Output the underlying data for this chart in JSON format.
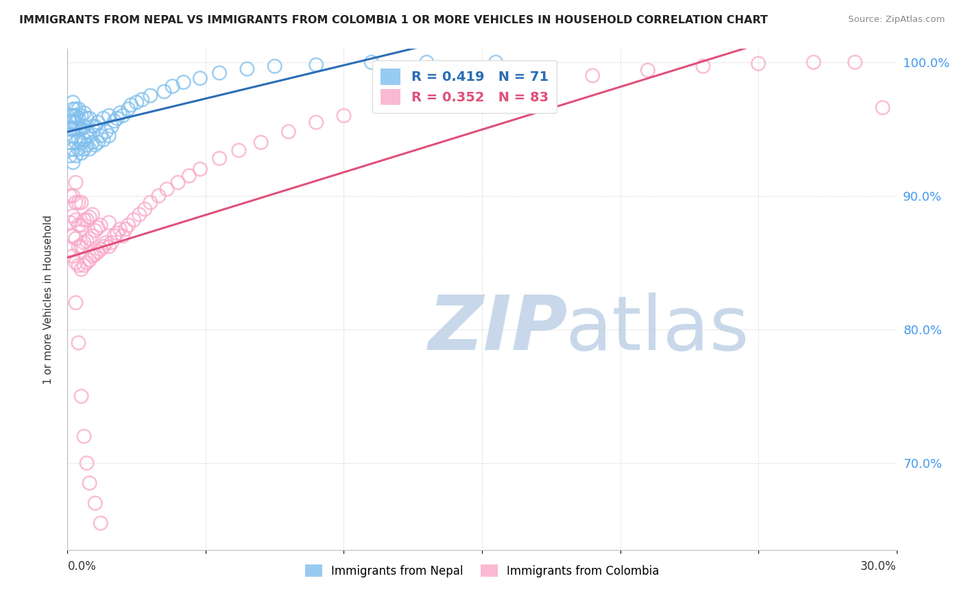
{
  "title": "IMMIGRANTS FROM NEPAL VS IMMIGRANTS FROM COLOMBIA 1 OR MORE VEHICLES IN HOUSEHOLD CORRELATION CHART",
  "source": "Source: ZipAtlas.com",
  "ylabel": "1 or more Vehicles in Household",
  "ytick_values": [
    0.7,
    0.8,
    0.9,
    1.0
  ],
  "ytick_labels": [
    "70.0%",
    "80.0%",
    "90.0%",
    "100.0%"
  ],
  "xlim": [
    0.0,
    0.3
  ],
  "ylim": [
    0.635,
    1.01
  ],
  "nepal_color": "#7fbfed",
  "colombia_color": "#f9a8c9",
  "nepal_line_color": "#2a6db5",
  "colombia_line_color": "#e0507a",
  "nepal_R": 0.419,
  "nepal_N": 71,
  "colombia_R": 0.352,
  "colombia_N": 83,
  "background_color": "#ffffff",
  "watermark_color": "#c8d8ea",
  "grid_color": "#cccccc",
  "legend_nepal_label": "Immigrants from Nepal",
  "legend_colombia_label": "Immigrants from Colombia",
  "nepal_x": [
    0.001,
    0.001,
    0.001,
    0.001,
    0.001,
    0.002,
    0.002,
    0.002,
    0.002,
    0.002,
    0.002,
    0.002,
    0.002,
    0.003,
    0.003,
    0.003,
    0.003,
    0.003,
    0.003,
    0.004,
    0.004,
    0.004,
    0.004,
    0.004,
    0.005,
    0.005,
    0.005,
    0.005,
    0.006,
    0.006,
    0.006,
    0.006,
    0.007,
    0.007,
    0.007,
    0.008,
    0.008,
    0.008,
    0.009,
    0.009,
    0.01,
    0.01,
    0.011,
    0.011,
    0.012,
    0.013,
    0.013,
    0.014,
    0.015,
    0.015,
    0.016,
    0.017,
    0.018,
    0.019,
    0.02,
    0.022,
    0.023,
    0.025,
    0.027,
    0.03,
    0.035,
    0.038,
    0.042,
    0.048,
    0.055,
    0.065,
    0.075,
    0.09,
    0.11,
    0.13,
    0.155
  ],
  "nepal_y": [
    0.93,
    0.94,
    0.95,
    0.955,
    0.96,
    0.925,
    0.935,
    0.945,
    0.95,
    0.955,
    0.96,
    0.965,
    0.97,
    0.93,
    0.94,
    0.95,
    0.955,
    0.96,
    0.965,
    0.935,
    0.942,
    0.95,
    0.958,
    0.965,
    0.932,
    0.94,
    0.95,
    0.96,
    0.935,
    0.942,
    0.952,
    0.962,
    0.938,
    0.948,
    0.958,
    0.935,
    0.945,
    0.958,
    0.94,
    0.952,
    0.938,
    0.952,
    0.94,
    0.955,
    0.945,
    0.942,
    0.958,
    0.948,
    0.945,
    0.96,
    0.952,
    0.956,
    0.958,
    0.962,
    0.96,
    0.965,
    0.968,
    0.97,
    0.972,
    0.975,
    0.978,
    0.982,
    0.985,
    0.988,
    0.992,
    0.995,
    0.997,
    0.998,
    1.0,
    1.0,
    1.0
  ],
  "colombia_x": [
    0.001,
    0.001,
    0.001,
    0.002,
    0.002,
    0.002,
    0.002,
    0.003,
    0.003,
    0.003,
    0.003,
    0.003,
    0.004,
    0.004,
    0.004,
    0.004,
    0.005,
    0.005,
    0.005,
    0.005,
    0.006,
    0.006,
    0.006,
    0.007,
    0.007,
    0.007,
    0.008,
    0.008,
    0.008,
    0.009,
    0.009,
    0.009,
    0.01,
    0.01,
    0.011,
    0.011,
    0.012,
    0.012,
    0.013,
    0.014,
    0.015,
    0.015,
    0.016,
    0.017,
    0.018,
    0.019,
    0.02,
    0.021,
    0.022,
    0.024,
    0.026,
    0.028,
    0.03,
    0.033,
    0.036,
    0.04,
    0.044,
    0.048,
    0.055,
    0.062,
    0.07,
    0.08,
    0.09,
    0.1,
    0.115,
    0.13,
    0.15,
    0.17,
    0.19,
    0.21,
    0.23,
    0.25,
    0.27,
    0.285,
    0.295,
    0.003,
    0.004,
    0.005,
    0.006,
    0.007,
    0.008,
    0.01,
    0.012
  ],
  "colombia_y": [
    0.86,
    0.88,
    0.9,
    0.855,
    0.87,
    0.885,
    0.9,
    0.85,
    0.868,
    0.882,
    0.895,
    0.91,
    0.848,
    0.862,
    0.878,
    0.895,
    0.845,
    0.862,
    0.878,
    0.895,
    0.848,
    0.865,
    0.882,
    0.85,
    0.866,
    0.882,
    0.852,
    0.868,
    0.884,
    0.855,
    0.87,
    0.886,
    0.856,
    0.874,
    0.858,
    0.876,
    0.86,
    0.878,
    0.862,
    0.865,
    0.862,
    0.88,
    0.865,
    0.87,
    0.872,
    0.875,
    0.87,
    0.875,
    0.878,
    0.882,
    0.886,
    0.89,
    0.895,
    0.9,
    0.905,
    0.91,
    0.915,
    0.92,
    0.928,
    0.934,
    0.94,
    0.948,
    0.955,
    0.96,
    0.968,
    0.975,
    0.98,
    0.985,
    0.99,
    0.994,
    0.997,
    0.999,
    1.0,
    1.0,
    0.966,
    0.82,
    0.79,
    0.75,
    0.72,
    0.7,
    0.685,
    0.67,
    0.655
  ]
}
